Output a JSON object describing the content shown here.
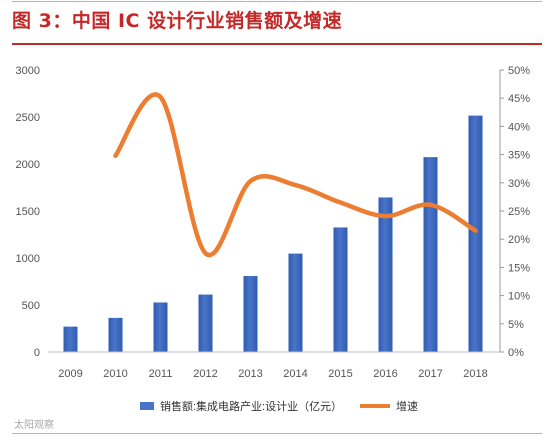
{
  "header": {
    "title": "图 3：中国 IC 设计行业销售额及增速"
  },
  "watermark": "太阳观察",
  "colors": {
    "title": "#c62828",
    "bar": "#4a74c6",
    "line": "#ed7d31",
    "axis_text": "#555555"
  },
  "chart_data": {
    "type": "bar",
    "title": "",
    "categories": [
      "2009",
      "2010",
      "2011",
      "2012",
      "2013",
      "2014",
      "2015",
      "2016",
      "2017",
      "2018"
    ],
    "series": [
      {
        "name": "销售额:集成电路产业:设计业（亿元）",
        "type": "bar",
        "axis": "left",
        "values": [
          270,
          363,
          527,
          611,
          808,
          1047,
          1325,
          1644,
          2073,
          2515
        ]
      },
      {
        "name": "增速",
        "type": "line",
        "axis": "right",
        "values": [
          null,
          34.8,
          45.2,
          17.5,
          30.3,
          29.6,
          26.5,
          24.1,
          26.1,
          21.5
        ]
      }
    ],
    "ylim_left": [
      0,
      3000
    ],
    "ylim_right": [
      0,
      50
    ],
    "yticks_left": [
      "0",
      "500",
      "1000",
      "1500",
      "2000",
      "2500",
      "3000"
    ],
    "yticks_right": [
      "0%",
      "5%",
      "10%",
      "15%",
      "20%",
      "25%",
      "30%",
      "35%",
      "40%",
      "45%",
      "50%"
    ],
    "grid": false,
    "legend_position": "bottom"
  }
}
